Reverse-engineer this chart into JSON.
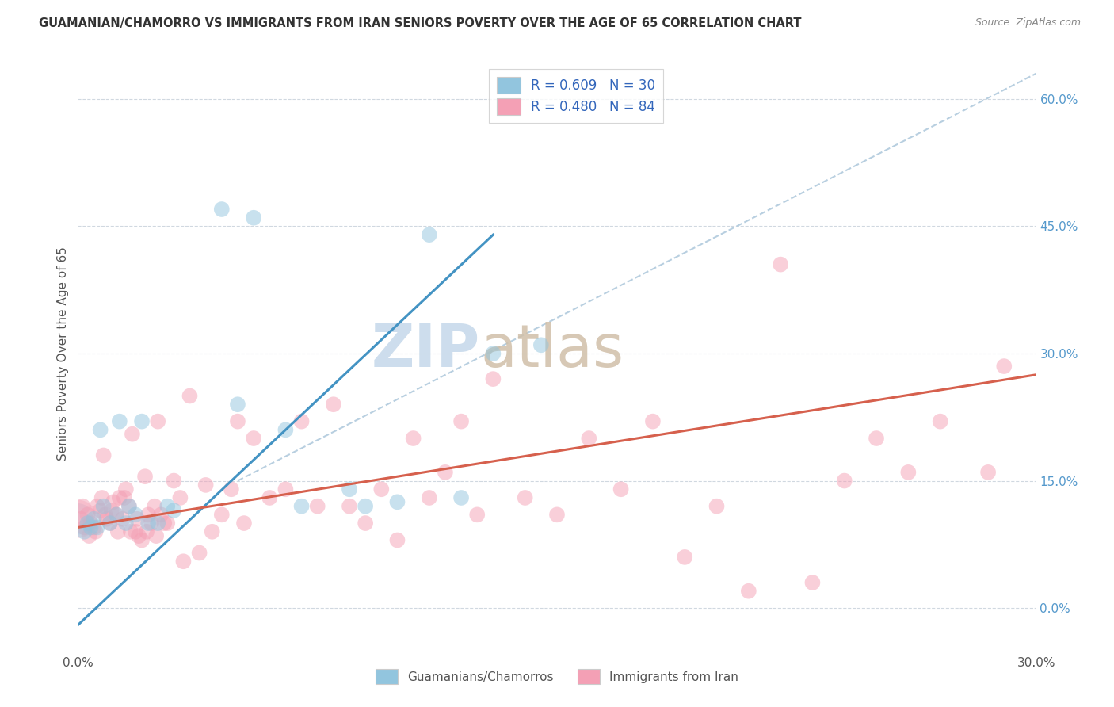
{
  "title": "GUAMANIAN/CHAMORRO VS IMMIGRANTS FROM IRAN SENIORS POVERTY OVER THE AGE OF 65 CORRELATION CHART",
  "source": "Source: ZipAtlas.com",
  "ylabel": "Seniors Poverty Over the Age of 65",
  "yaxis_right_labels": [
    "0.0%",
    "15.0%",
    "30.0%",
    "45.0%",
    "60.0%"
  ],
  "yaxis_right_values": [
    0.0,
    15.0,
    30.0,
    45.0,
    60.0
  ],
  "legend_bottom1": "Guamanians/Chamorros",
  "legend_bottom2": "Immigrants from Iran",
  "blue_color": "#92c5de",
  "pink_color": "#f4a0b5",
  "blue_line_color": "#4393c3",
  "pink_line_color": "#d6604d",
  "dashed_line_color": "#b8cfe0",
  "title_color": "#333333",
  "watermark_color_zip": "#c5d8ea",
  "watermark_color_atlas": "#d0bfa8",
  "xlim": [
    0.0,
    30.0
  ],
  "ylim": [
    -5.0,
    65.0
  ],
  "blue_scatter_x": [
    0.3,
    0.5,
    0.6,
    0.8,
    1.0,
    1.2,
    1.5,
    1.8,
    2.0,
    2.2,
    2.5,
    3.0,
    4.5,
    5.0,
    5.5,
    6.5,
    7.0,
    8.5,
    9.0,
    10.0,
    11.0,
    12.0,
    13.0,
    14.5,
    0.2,
    0.4,
    0.7,
    1.3,
    1.6,
    2.8
  ],
  "blue_scatter_y": [
    10.0,
    10.5,
    9.5,
    12.0,
    10.0,
    11.0,
    10.0,
    11.0,
    22.0,
    10.0,
    10.0,
    11.5,
    47.0,
    24.0,
    46.0,
    21.0,
    12.0,
    14.0,
    12.0,
    12.5,
    44.0,
    13.0,
    30.0,
    31.0,
    9.0,
    9.5,
    21.0,
    22.0,
    12.0,
    12.0
  ],
  "pink_scatter_x": [
    0.1,
    0.2,
    0.3,
    0.4,
    0.5,
    0.6,
    0.7,
    0.8,
    0.9,
    1.0,
    1.1,
    1.2,
    1.3,
    1.4,
    1.5,
    1.6,
    1.7,
    1.8,
    1.9,
    2.0,
    2.1,
    2.2,
    2.3,
    2.4,
    2.5,
    2.6,
    2.7,
    2.8,
    3.0,
    3.2,
    3.5,
    3.8,
    4.0,
    4.2,
    4.5,
    5.0,
    5.5,
    6.0,
    6.5,
    7.0,
    7.5,
    8.0,
    8.5,
    9.0,
    9.5,
    10.0,
    10.5,
    11.0,
    11.5,
    12.0,
    12.5,
    13.0,
    14.0,
    15.0,
    16.0,
    17.0,
    18.0,
    19.0,
    20.0,
    21.0,
    22.0,
    23.0,
    24.0,
    25.0,
    26.0,
    27.0,
    28.5,
    29.0,
    0.15,
    0.35,
    0.55,
    0.75,
    0.85,
    1.05,
    1.25,
    1.45,
    1.65,
    1.85,
    2.15,
    2.45,
    3.3,
    4.8,
    5.2
  ],
  "pink_scatter_y": [
    10.5,
    9.5,
    11.0,
    10.0,
    9.5,
    12.0,
    11.5,
    18.0,
    10.5,
    10.0,
    12.5,
    11.0,
    13.0,
    10.5,
    14.0,
    12.0,
    20.5,
    9.0,
    8.5,
    8.0,
    15.5,
    11.0,
    10.0,
    12.0,
    22.0,
    11.0,
    10.0,
    10.0,
    15.0,
    13.0,
    25.0,
    6.5,
    14.5,
    9.0,
    11.0,
    22.0,
    20.0,
    13.0,
    14.0,
    22.0,
    12.0,
    24.0,
    12.0,
    10.0,
    14.0,
    8.0,
    20.0,
    13.0,
    16.0,
    22.0,
    11.0,
    27.0,
    13.0,
    11.0,
    20.0,
    14.0,
    22.0,
    6.0,
    12.0,
    2.0,
    40.5,
    3.0,
    15.0,
    20.0,
    16.0,
    22.0,
    16.0,
    28.5,
    12.0,
    8.5,
    9.0,
    13.0,
    11.0,
    11.5,
    9.0,
    13.0,
    9.0,
    10.5,
    9.0,
    8.5,
    5.5,
    14.0,
    10.0
  ],
  "blue_line_x0": 0.0,
  "blue_line_y0": -2.0,
  "blue_line_x1": 13.0,
  "blue_line_y1": 44.0,
  "pink_line_x0": 0.0,
  "pink_line_y0": 9.5,
  "pink_line_x1": 30.0,
  "pink_line_y1": 27.5,
  "diag_x0": 5.0,
  "diag_y0": 15.0,
  "diag_x1": 30.0,
  "diag_y1": 63.0
}
